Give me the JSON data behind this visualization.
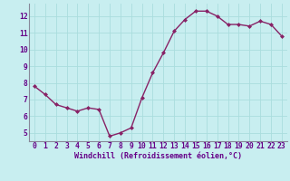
{
  "x": [
    0,
    1,
    2,
    3,
    4,
    5,
    6,
    7,
    8,
    9,
    10,
    11,
    12,
    13,
    14,
    15,
    16,
    17,
    18,
    19,
    20,
    21,
    22,
    23
  ],
  "y": [
    7.8,
    7.3,
    6.7,
    6.5,
    6.3,
    6.5,
    6.4,
    4.8,
    5.0,
    5.3,
    7.1,
    8.6,
    9.8,
    11.1,
    11.8,
    12.3,
    12.3,
    12.0,
    11.5,
    11.5,
    11.4,
    11.7,
    11.5,
    10.8
  ],
  "line_color": "#882266",
  "marker": "D",
  "marker_size": 2.0,
  "bg_color": "#c8eef0",
  "grid_color": "#aadddd",
  "axis_color": "#888899",
  "text_color": "#660088",
  "xlabel": "Windchill (Refroidissement éolien,°C)",
  "xlabel_fontsize": 6.0,
  "tick_fontsize": 5.8,
  "ylim": [
    4.5,
    12.75
  ],
  "yticks": [
    5,
    6,
    7,
    8,
    9,
    10,
    11,
    12
  ],
  "xticks": [
    0,
    1,
    2,
    3,
    4,
    5,
    6,
    7,
    8,
    9,
    10,
    11,
    12,
    13,
    14,
    15,
    16,
    17,
    18,
    19,
    20,
    21,
    22,
    23
  ],
  "line_width": 1.0
}
